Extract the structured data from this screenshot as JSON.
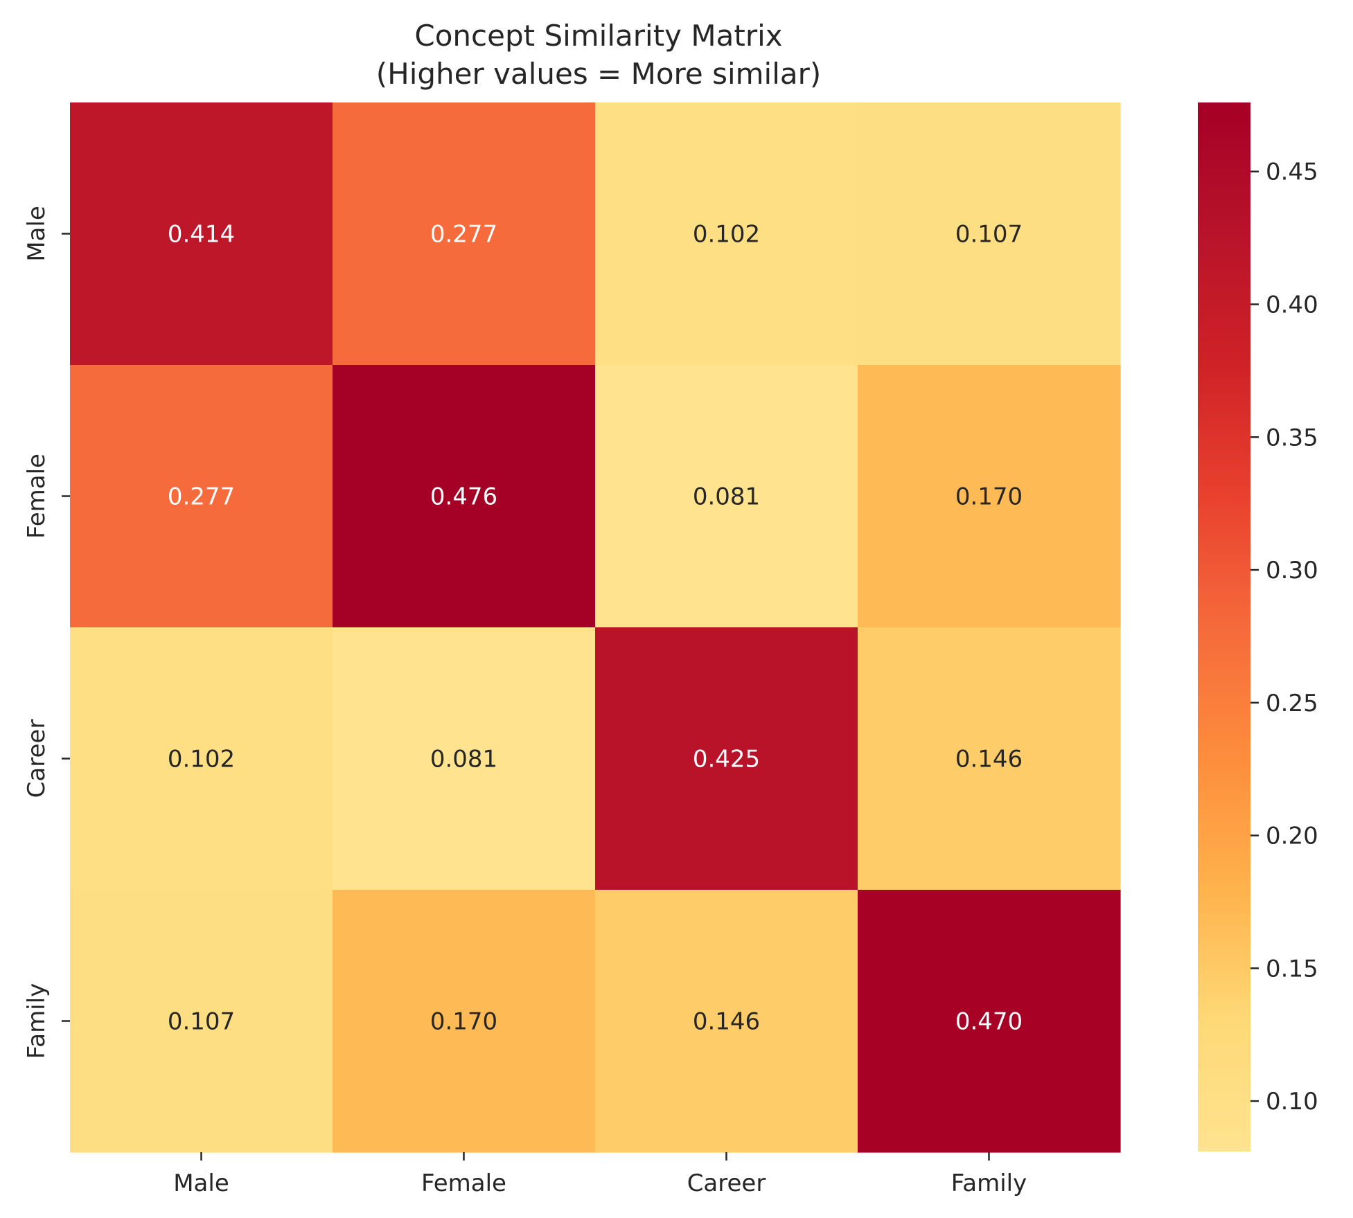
{
  "chart_data": {
    "type": "heatmap",
    "title": "Concept Similarity Matrix",
    "subtitle": "(Higher values = More similar)",
    "xlabel": "",
    "ylabel": "",
    "x_categories": [
      "Male",
      "Female",
      "Career",
      "Family"
    ],
    "y_categories": [
      "Male",
      "Female",
      "Career",
      "Family"
    ],
    "values": [
      [
        0.414,
        0.277,
        0.102,
        0.107
      ],
      [
        0.277,
        0.476,
        0.081,
        0.17
      ],
      [
        0.102,
        0.081,
        0.425,
        0.146
      ],
      [
        0.107,
        0.17,
        0.146,
        0.47
      ]
    ],
    "value_labels": [
      [
        "0.414",
        "0.277",
        "0.102",
        "0.107"
      ],
      [
        "0.277",
        "0.476",
        "0.081",
        "0.170"
      ],
      [
        "0.102",
        "0.081",
        "0.425",
        "0.146"
      ],
      [
        "0.107",
        "0.170",
        "0.146",
        "0.470"
      ]
    ],
    "colormap": "YlOrRd",
    "color_range": [
      0.081,
      0.476
    ],
    "colorbar": {
      "placement": "right",
      "ticks": [
        0.1,
        0.15,
        0.2,
        0.25,
        0.3,
        0.35,
        0.4,
        0.45
      ],
      "tick_labels": [
        "0.10",
        "0.15",
        "0.20",
        "0.25",
        "0.30",
        "0.35",
        "0.40",
        "0.45"
      ]
    },
    "grid": false
  }
}
